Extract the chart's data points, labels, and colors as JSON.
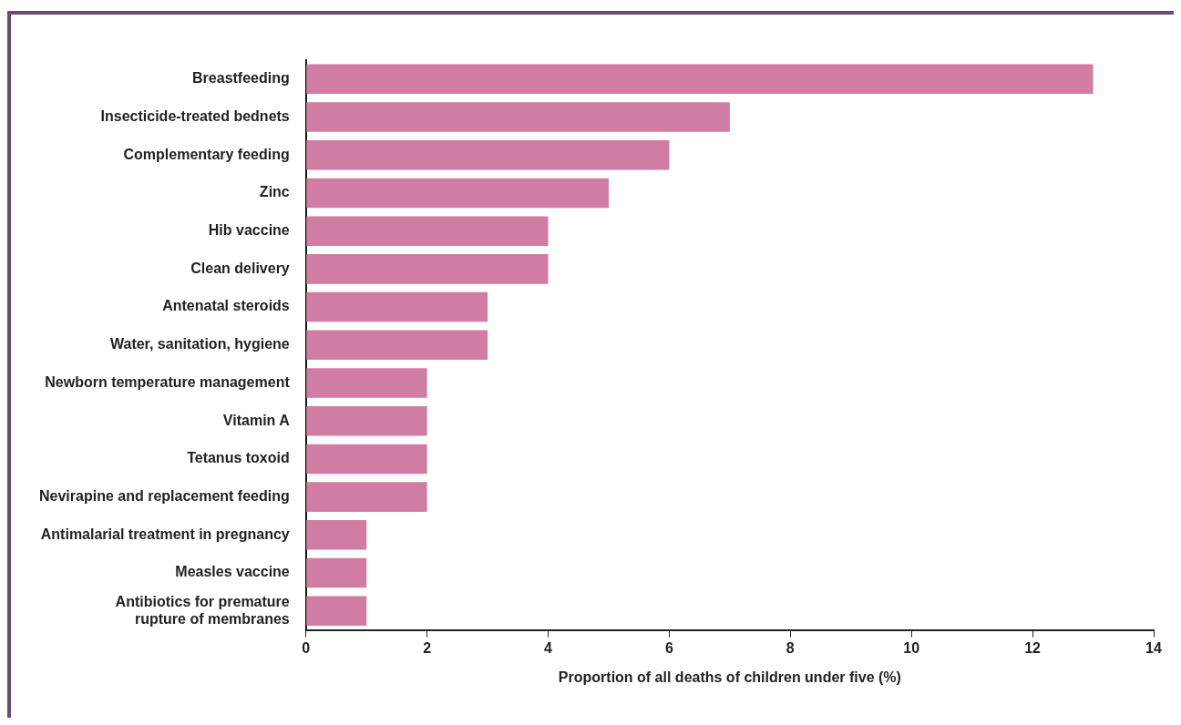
{
  "chart_data": {
    "type": "bar",
    "orientation": "horizontal",
    "xlabel": "Proportion of all deaths of children under five (%)",
    "categories": [
      "Breastfeeding",
      "Insecticide-treated bednets",
      "Complementary feeding",
      "Zinc",
      "Hib vaccine",
      "Clean delivery",
      "Antenatal steroids",
      "Water, sanitation, hygiene",
      "Newborn temperature management",
      "Vitamin A",
      "Tetanus toxoid",
      "Nevirapine and replacement feeding",
      "Antimalarial treatment in pregnancy",
      "Measles vaccine",
      "Antibiotics for premature rupture of membranes"
    ],
    "values": [
      13,
      7,
      6,
      5,
      4,
      4,
      3,
      3,
      2,
      2,
      2,
      2,
      1,
      1,
      1
    ],
    "color": "#d17ca3",
    "xlim": [
      0,
      14
    ],
    "xticks": [
      0,
      2,
      4,
      6,
      8,
      10,
      12,
      14
    ],
    "legend": false
  }
}
